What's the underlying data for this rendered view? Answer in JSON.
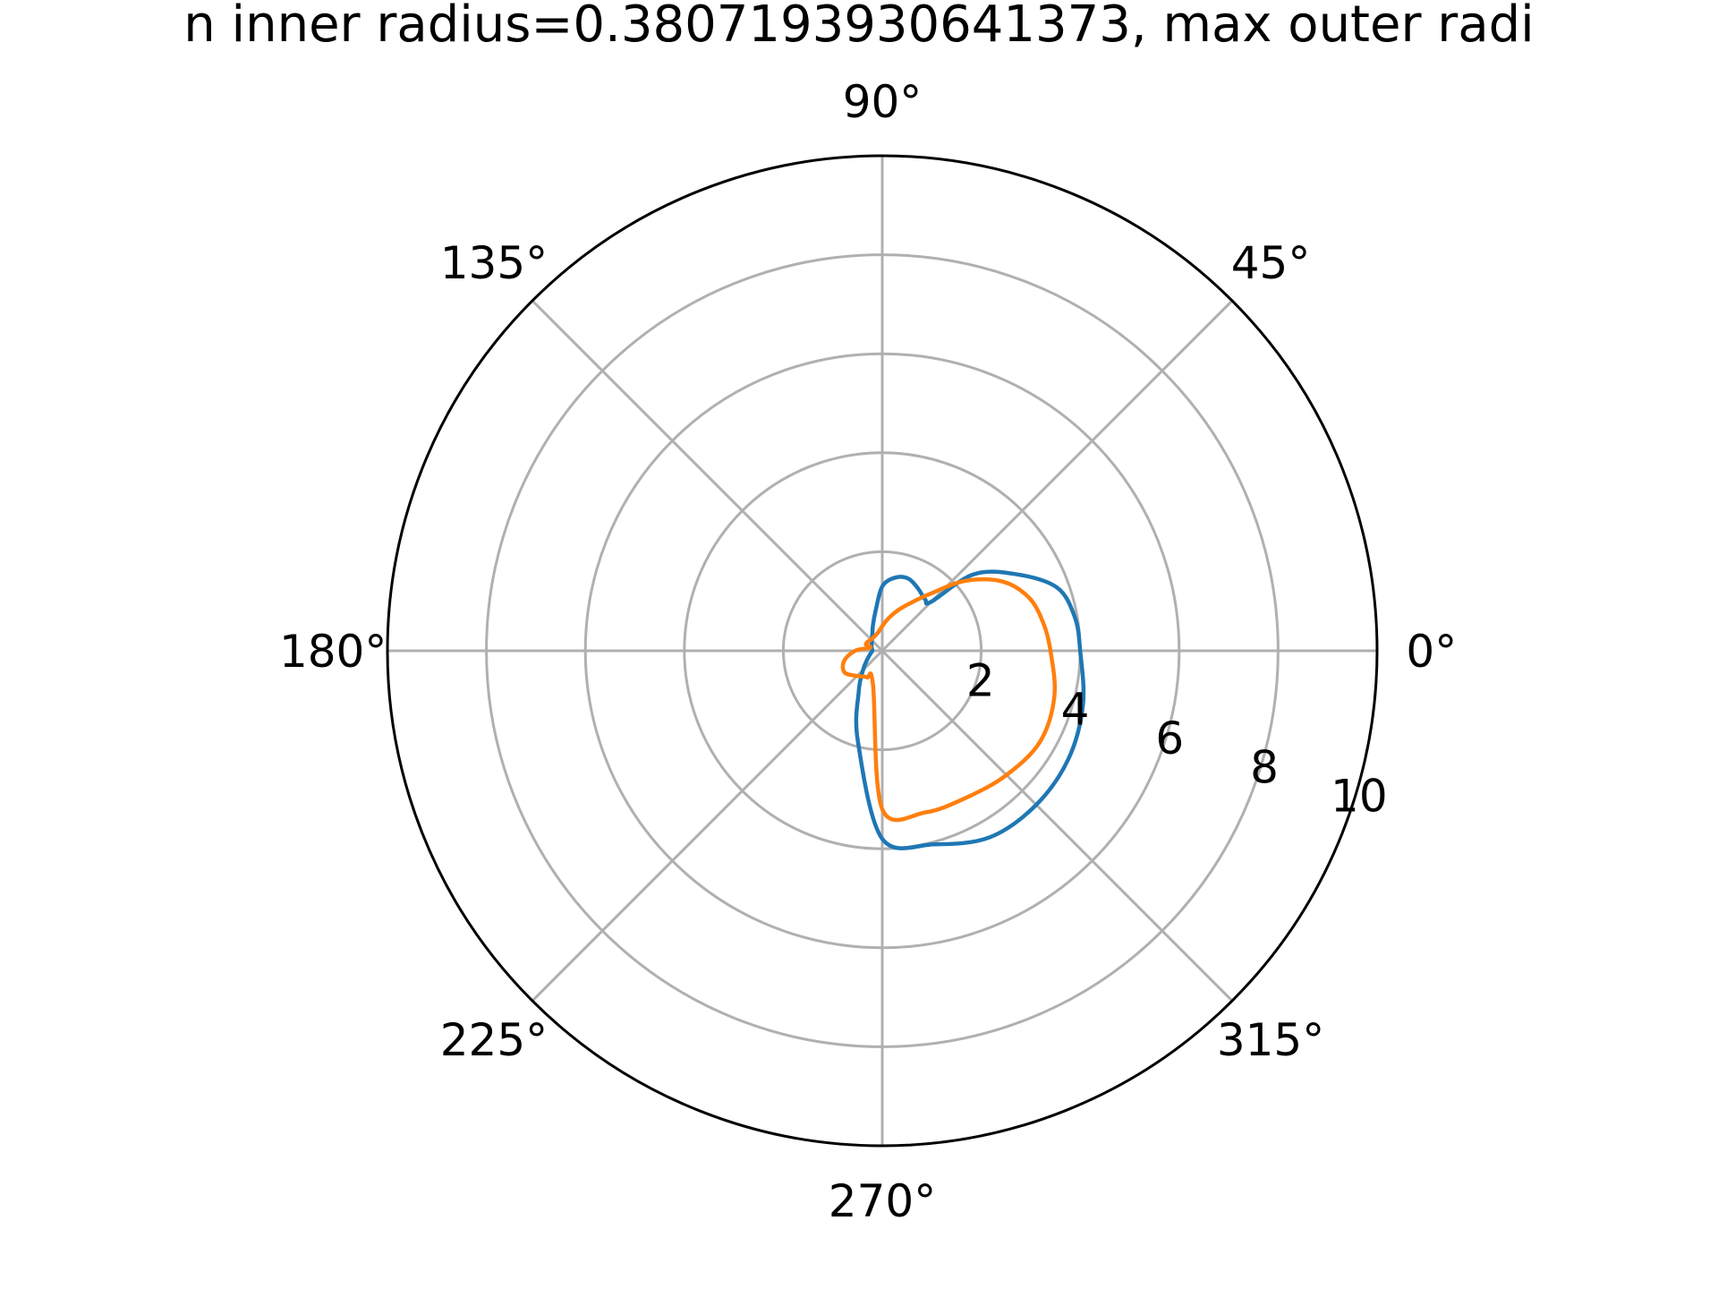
{
  "chart_data": {
    "type": "line",
    "projection": "polar",
    "title": "n inner radius=0.3807193930641373, max outer radi",
    "rlim": [
      0,
      10
    ],
    "r_ticks": [
      2,
      4,
      6,
      8,
      10
    ],
    "r_tick_labels": [
      "2",
      "4",
      "6",
      "8",
      "10"
    ],
    "theta_ticks_deg": [
      0,
      45,
      90,
      135,
      180,
      225,
      270,
      315
    ],
    "theta_tick_labels": [
      "0°",
      "45°",
      "90°",
      "135°",
      "180°",
      "225°",
      "270°",
      "315°"
    ],
    "grid": true,
    "series": [
      {
        "color": "#1f77b4",
        "theta_deg": [
          0,
          10,
          20,
          30,
          40,
          45,
          50,
          60,
          70,
          80,
          90,
          100,
          110,
          120,
          135,
          150,
          165,
          180,
          195,
          210,
          225,
          240,
          255,
          270,
          285,
          300,
          315,
          330,
          345,
          360
        ],
        "r": [
          4.0,
          3.95,
          3.75,
          3.1,
          2.4,
          1.4,
          1.35,
          1.45,
          1.55,
          1.5,
          1.3,
          0.8,
          0.55,
          0.4,
          0.3,
          0.25,
          0.22,
          0.2,
          0.25,
          0.35,
          0.55,
          0.95,
          1.9,
          3.8,
          4.05,
          4.35,
          4.4,
          4.35,
          4.2,
          4.0
        ]
      },
      {
        "color": "#ff7f0e",
        "theta_deg": [
          0,
          10,
          20,
          30,
          40,
          50,
          60,
          70,
          80,
          90,
          100,
          110,
          120,
          135,
          150,
          160,
          165,
          180,
          195,
          210,
          225,
          240,
          255,
          270,
          285,
          300,
          315,
          330,
          345,
          360
        ],
        "r": [
          3.4,
          3.3,
          3.15,
          2.8,
          2.2,
          1.5,
          1.1,
          0.85,
          0.65,
          0.5,
          0.4,
          0.35,
          0.33,
          0.32,
          0.35,
          0.35,
          0.25,
          0.55,
          0.8,
          0.88,
          0.72,
          0.62,
          0.72,
          3.2,
          3.38,
          3.42,
          3.55,
          3.68,
          3.6,
          3.4
        ]
      }
    ]
  }
}
